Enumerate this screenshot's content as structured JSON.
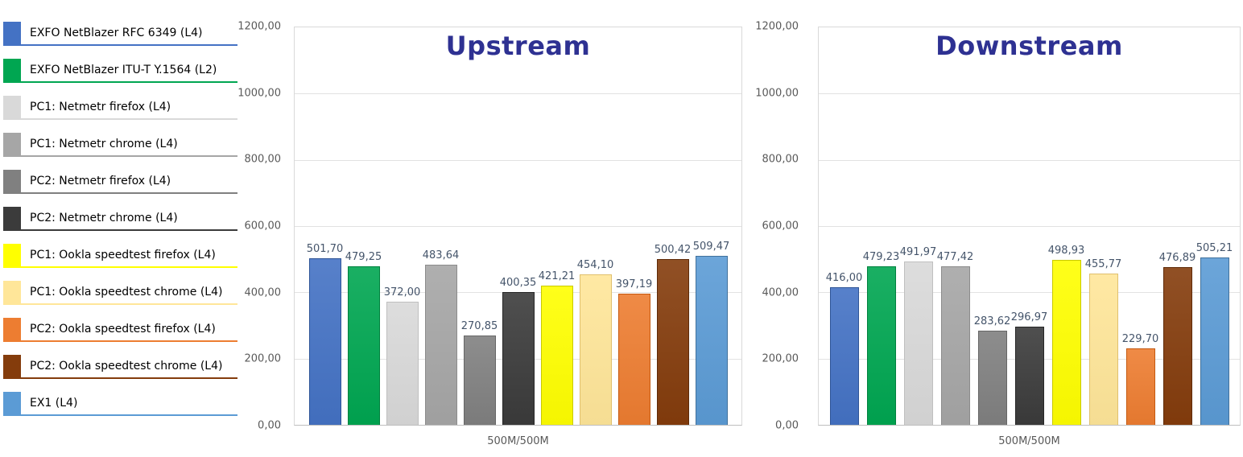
{
  "colors": {
    "background": "#FFFFFF",
    "title": "#2E3192",
    "axis_label": "#595959",
    "data_label": "#44546A",
    "gridline": "#E2E2E2",
    "plot_border": "#D9D9D9",
    "axis_line": "#BFBFBF"
  },
  "legend": {
    "items": [
      {
        "label": "EXFO NetBlazer RFC 6349 (L4)",
        "color": "#4472C4",
        "border": "#2F5597"
      },
      {
        "label": "EXFO NetBlazer ITU-T Y.1564 (L2)",
        "color": "#00A651",
        "border": "#00813E"
      },
      {
        "label": "PC1: Netmetr firefox (L4)",
        "color": "#D9D9D9",
        "border": "#BFBFBF"
      },
      {
        "label": "PC1: Netmetr chrome (L4)",
        "color": "#A6A6A6",
        "border": "#8C8C8C"
      },
      {
        "label": "PC2: Netmetr firefox (L4)",
        "color": "#808080",
        "border": "#666666"
      },
      {
        "label": "PC2: Netmetr chrome (L4)",
        "color": "#3B3B3B",
        "border": "#262626"
      },
      {
        "label": "PC1: Ookla speedtest firefox (L4)",
        "color": "#FFFF00",
        "border": "#C9C900"
      },
      {
        "label": "PC1: Ookla speedtest chrome (L4)",
        "color": "#FFE699",
        "border": "#E0C06E"
      },
      {
        "label": "PC2: Ookla speedtest firefox (L4)",
        "color": "#ED7D31",
        "border": "#C55A11"
      },
      {
        "label": "PC2: Ookla speedtest chrome (L4)",
        "color": "#843C0C",
        "border": "#5E2A08"
      },
      {
        "label": "EX1 (L4)",
        "color": "#5B9BD5",
        "border": "#41719C"
      }
    ]
  },
  "chart_data": [
    {
      "type": "bar",
      "title": "Upstream",
      "xlabel": "500M/500M",
      "categories": [
        "500M/500M"
      ],
      "ylim": [
        0,
        1200
      ],
      "ytick_step": 200,
      "ytick_labels": [
        "1200,00",
        "1000,00",
        "800,00",
        "600,00",
        "400,00",
        "200,00",
        "0,00"
      ],
      "grid": true,
      "legend_position": "shared-left",
      "series": [
        {
          "name": "EXFO NetBlazer RFC 6349 (L4)",
          "value": 501.7,
          "label": "501,70",
          "color": "#4472C4",
          "border": "#2F5597"
        },
        {
          "name": "EXFO NetBlazer ITU-T Y.1564 (L2)",
          "value": 479.25,
          "label": "479,25",
          "color": "#00A651",
          "border": "#00813E"
        },
        {
          "name": "PC1: Netmetr firefox (L4)",
          "value": 372.0,
          "label": "372,00",
          "color": "#D9D9D9",
          "border": "#BFBFBF"
        },
        {
          "name": "PC1: Netmetr chrome (L4)",
          "value": 483.64,
          "label": "483,64",
          "color": "#A6A6A6",
          "border": "#8C8C8C"
        },
        {
          "name": "PC2: Netmetr firefox (L4)",
          "value": 270.85,
          "label": "270,85",
          "color": "#808080",
          "border": "#666666"
        },
        {
          "name": "PC2: Netmetr chrome (L4)",
          "value": 400.35,
          "label": "400,35",
          "color": "#3B3B3B",
          "border": "#262626"
        },
        {
          "name": "PC1: Ookla speedtest firefox (L4)",
          "value": 421.21,
          "label": "421,21",
          "color": "#FFFF00",
          "border": "#C9C900"
        },
        {
          "name": "PC1: Ookla speedtest chrome (L4)",
          "value": 454.1,
          "label": "454,10",
          "color": "#FFE699",
          "border": "#E0C06E"
        },
        {
          "name": "PC2: Ookla speedtest firefox (L4)",
          "value": 397.19,
          "label": "397,19",
          "color": "#ED7D31",
          "border": "#C55A11"
        },
        {
          "name": "PC2: Ookla speedtest chrome (L4)",
          "value": 500.42,
          "label": "500,42",
          "color": "#843C0C",
          "border": "#5E2A08"
        },
        {
          "name": "EX1 (L4)",
          "value": 509.47,
          "label": "509,47",
          "color": "#5B9BD5",
          "border": "#41719C"
        }
      ]
    },
    {
      "type": "bar",
      "title": "Downstream",
      "xlabel": "500M/500M",
      "categories": [
        "500M/500M"
      ],
      "ylim": [
        0,
        1200
      ],
      "ytick_step": 200,
      "ytick_labels": [
        "1200,00",
        "1000,00",
        "800,00",
        "600,00",
        "400,00",
        "200,00",
        "0,00"
      ],
      "grid": true,
      "legend_position": "shared-left",
      "series": [
        {
          "name": "EXFO NetBlazer RFC 6349 (L4)",
          "value": 416.0,
          "label": "416,00",
          "color": "#4472C4",
          "border": "#2F5597"
        },
        {
          "name": "EXFO NetBlazer ITU-T Y.1564 (L2)",
          "value": 479.23,
          "label": "479,23",
          "color": "#00A651",
          "border": "#00813E"
        },
        {
          "name": "PC1: Netmetr firefox (L4)",
          "value": 491.97,
          "label": "491,97",
          "color": "#D9D9D9",
          "border": "#BFBFBF"
        },
        {
          "name": "PC1: Netmetr chrome (L4)",
          "value": 477.42,
          "label": "477,42",
          "color": "#A6A6A6",
          "border": "#8C8C8C"
        },
        {
          "name": "PC2: Netmetr firefox (L4)",
          "value": 283.62,
          "label": "283,62",
          "color": "#808080",
          "border": "#666666"
        },
        {
          "name": "PC2: Netmetr chrome (L4)",
          "value": 296.97,
          "label": "296,97",
          "color": "#3B3B3B",
          "border": "#262626"
        },
        {
          "name": "PC1: Ookla speedtest firefox (L4)",
          "value": 498.93,
          "label": "498,93",
          "color": "#FFFF00",
          "border": "#C9C900"
        },
        {
          "name": "PC1: Ookla speedtest chrome (L4)",
          "value": 455.77,
          "label": "455,77",
          "color": "#FFE699",
          "border": "#E0C06E"
        },
        {
          "name": "PC2: Ookla speedtest firefox (L4)",
          "value": 229.7,
          "label": "229,70",
          "color": "#ED7D31",
          "border": "#C55A11"
        },
        {
          "name": "PC2: Ookla speedtest chrome (L4)",
          "value": 476.89,
          "label": "476,89",
          "color": "#843C0C",
          "border": "#5E2A08"
        },
        {
          "name": "EX1 (L4)",
          "value": 505.21,
          "label": "505,21",
          "color": "#5B9BD5",
          "border": "#41719C"
        }
      ]
    }
  ]
}
